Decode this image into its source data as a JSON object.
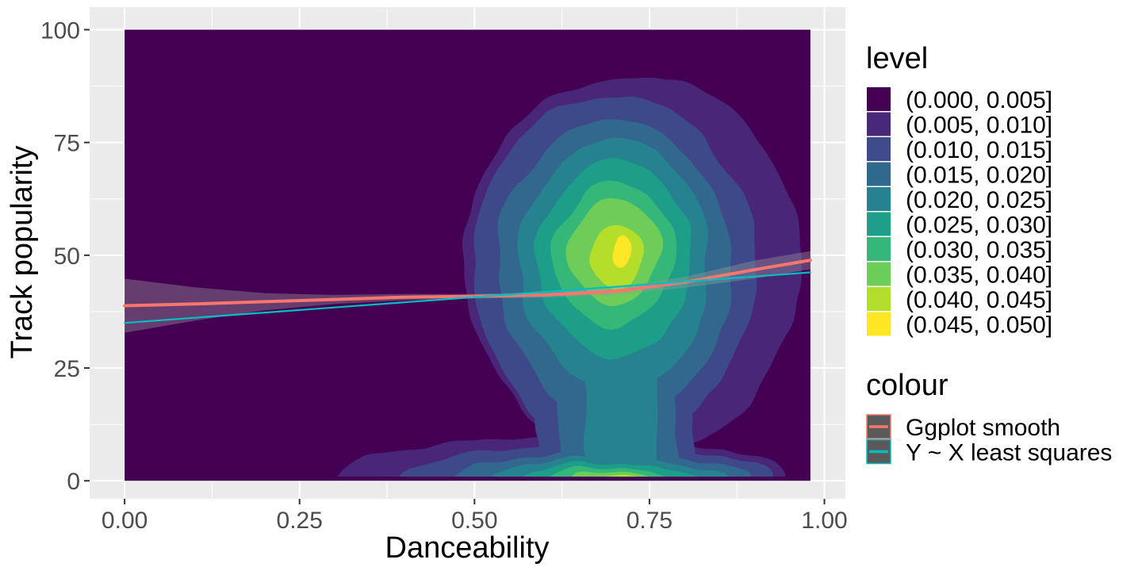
{
  "chart_data": {
    "type": "heatmap",
    "subtype": "filled 2D density contour with smoothing lines",
    "xlabel": "Danceability",
    "ylabel": "Track popularity",
    "xlim": [
      -0.05,
      1.03
    ],
    "ylim": [
      -4,
      105
    ],
    "x_ticks": [
      0.0,
      0.25,
      0.5,
      0.75,
      1.0
    ],
    "x_tick_labels": [
      "0.00",
      "0.25",
      "0.50",
      "0.75",
      "1.00"
    ],
    "y_ticks": [
      0,
      25,
      50,
      75,
      100
    ],
    "y_tick_labels": [
      "0",
      "25",
      "50",
      "75",
      "100"
    ],
    "grid": true,
    "density_extent": {
      "x": [
        0.0,
        0.98
      ],
      "y": [
        0,
        100
      ]
    },
    "density_peaks": [
      {
        "x": 0.7,
        "y": 50,
        "level_max": 0.05
      },
      {
        "x": 0.7,
        "y": 1,
        "level_max": 0.045
      }
    ],
    "level_legend": {
      "title": "level",
      "entries": [
        {
          "label": "(0.000, 0.005]",
          "color": "#440154"
        },
        {
          "label": "(0.005, 0.010]",
          "color": "#482878"
        },
        {
          "label": "(0.010, 0.015]",
          "color": "#3E4A89"
        },
        {
          "label": "(0.015, 0.020]",
          "color": "#31688E"
        },
        {
          "label": "(0.020, 0.025]",
          "color": "#26828E"
        },
        {
          "label": "(0.025, 0.030]",
          "color": "#1F9E89"
        },
        {
          "label": "(0.030, 0.035]",
          "color": "#35B779"
        },
        {
          "label": "(0.035, 0.040]",
          "color": "#6DCD59"
        },
        {
          "label": "(0.040, 0.045]",
          "color": "#B4DE2C"
        },
        {
          "label": "(0.045, 0.050]",
          "color": "#FDE725"
        }
      ]
    },
    "colour_legend": {
      "title": "colour",
      "entries": [
        {
          "label": "Ggplot smooth",
          "color": "#F8766D"
        },
        {
          "label": "Y ~ X least squares",
          "color": "#00BFC4"
        }
      ]
    },
    "series": [
      {
        "name": "Ggplot smooth",
        "color": "#F8766D",
        "x": [
          0.0,
          0.1,
          0.2,
          0.3,
          0.4,
          0.5,
          0.6,
          0.7,
          0.8,
          0.9,
          0.98
        ],
        "y": [
          38.8,
          39.2,
          39.7,
          40.2,
          40.7,
          40.9,
          41.2,
          42.0,
          44.0,
          46.8,
          48.9
        ],
        "ci_lower": [
          32.8,
          35.5,
          37.8,
          39.2,
          40.0,
          40.4,
          40.6,
          41.2,
          42.8,
          44.8,
          46.9
        ],
        "ci_upper": [
          44.8,
          42.9,
          41.6,
          41.2,
          41.4,
          41.4,
          41.8,
          42.8,
          45.2,
          48.8,
          50.9
        ]
      },
      {
        "name": "Y ~ X least squares",
        "color": "#00BFC4",
        "x": [
          0.0,
          0.98
        ],
        "y": [
          35.0,
          46.2
        ]
      }
    ]
  }
}
